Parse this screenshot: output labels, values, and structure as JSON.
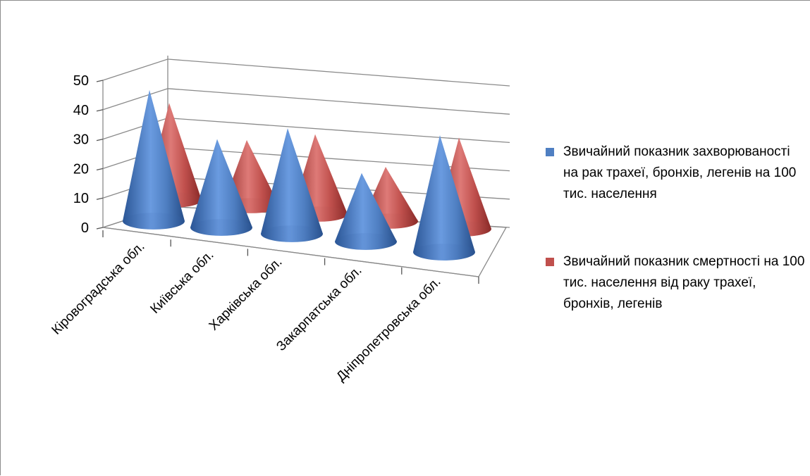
{
  "chart_data": {
    "type": "bar",
    "style": "3d-cone",
    "categories": [
      "Кіровоградська обл.",
      "Київська обл.",
      "Харківська обл.",
      "Закарпатська обл.",
      "Дніпропетровська обл."
    ],
    "series": [
      {
        "name": "Звичайний  показник захворюваності на рак трахеї, бронхів, легенів на 100 тис. населення",
        "values": [
          46,
          31,
          37,
          24,
          41
        ],
        "color": "#4f7fc2"
      },
      {
        "name": "Звичайний показник смертності на 100 тис. населення від раку трахеї, бронхів, легенів",
        "values": [
          34,
          23,
          28,
          19,
          32
        ],
        "color": "#c0504d"
      }
    ],
    "yticks": [
      "0",
      "10",
      "20",
      "30",
      "40",
      "50"
    ],
    "ylim": [
      0,
      50
    ],
    "grid": true,
    "legend_position": "right"
  }
}
